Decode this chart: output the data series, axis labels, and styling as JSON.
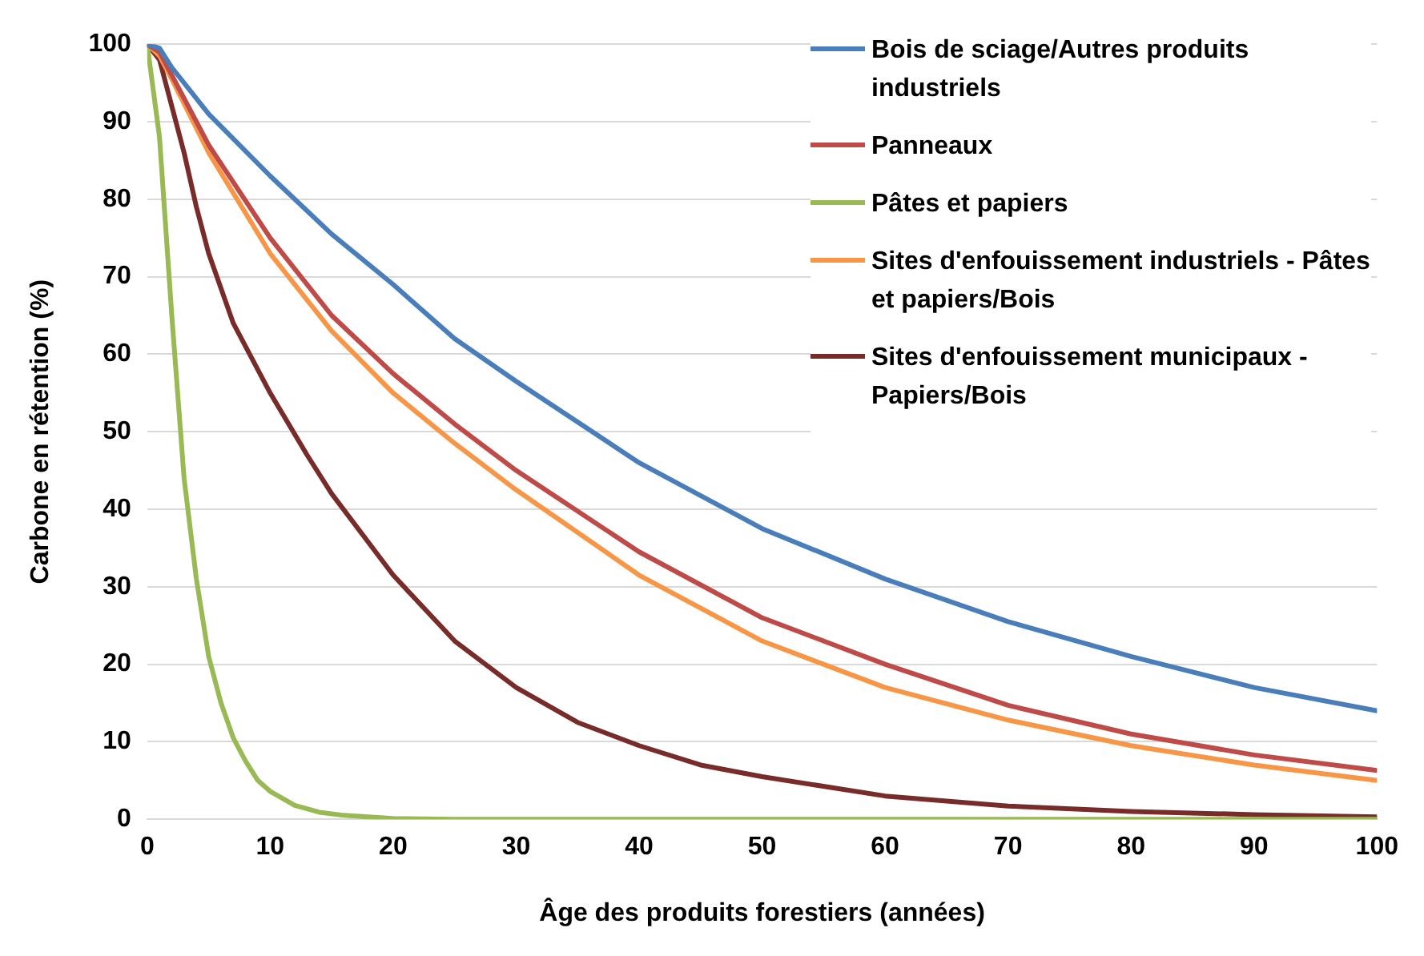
{
  "chart_data": {
    "type": "line",
    "xlabel": "Âge des produits forestiers (années)",
    "ylabel": "Carbone en rétention (%)",
    "xlim": [
      0,
      100
    ],
    "xticks": [
      0,
      10,
      20,
      30,
      40,
      50,
      60,
      70,
      80,
      90,
      100
    ],
    "ylim": [
      0,
      100
    ],
    "yticks": [
      0,
      10,
      20,
      30,
      40,
      50,
      60,
      70,
      80,
      90,
      100
    ],
    "grid": "y",
    "legend": "top right",
    "marker": "none",
    "line_style": "solid",
    "series": [
      {
        "name": "Bois de sciage/Autres produits industriels",
        "color": "#4a7ebb",
        "x": [
          0,
          1,
          2,
          5,
          10,
          15,
          20,
          25,
          30,
          40,
          50,
          60,
          70,
          80,
          90,
          100
        ],
        "values": [
          100,
          99.5,
          97,
          91,
          83,
          75.5,
          69,
          62,
          56.5,
          46,
          37.5,
          31,
          25.5,
          21,
          17,
          14
        ]
      },
      {
        "name": "Panneaux",
        "color": "#be4b48",
        "x": [
          0,
          1,
          2,
          5,
          10,
          15,
          20,
          25,
          30,
          40,
          50,
          60,
          70,
          80,
          90,
          100
        ],
        "values": [
          100,
          99,
          96,
          87,
          75,
          65,
          57.5,
          51,
          45,
          34.5,
          26,
          20,
          14.7,
          11,
          8.3,
          6.3
        ]
      },
      {
        "name": "Pâtes et papiers",
        "color": "#98b954",
        "x": [
          0,
          1,
          2,
          3,
          4,
          5,
          6,
          7,
          8,
          9,
          10,
          12,
          14,
          16,
          18,
          20,
          25,
          40,
          60,
          80,
          100
        ],
        "values": [
          100,
          88,
          65,
          44,
          31,
          21,
          15,
          10.5,
          7.5,
          5,
          3.6,
          1.8,
          0.9,
          0.5,
          0.3,
          0.1,
          0,
          0,
          0,
          0,
          0
        ]
      },
      {
        "name": "Sites d'enfouissement industriels - Pâtes et papiers/Bois",
        "color": "#f79646",
        "x": [
          0,
          1,
          2,
          5,
          10,
          15,
          20,
          25,
          30,
          40,
          50,
          60,
          70,
          80,
          90,
          100
        ],
        "values": [
          100,
          98.5,
          95.5,
          86,
          73,
          63,
          55,
          48.5,
          42.5,
          31.5,
          23,
          17,
          12.8,
          9.5,
          7,
          5
        ]
      },
      {
        "name": "Sites d'enfouissement municipaux - Papiers/Bois",
        "color": "#772c2a",
        "x": [
          0,
          1,
          2,
          3,
          4,
          5,
          7,
          10,
          13,
          15,
          20,
          25,
          30,
          35,
          40,
          45,
          50,
          60,
          70,
          80,
          90,
          100
        ],
        "values": [
          100,
          98,
          92,
          86,
          79,
          73,
          64,
          55,
          47,
          42,
          31.5,
          23,
          17,
          12.5,
          9.5,
          7,
          5.5,
          3,
          1.7,
          1,
          0.6,
          0.3
        ]
      }
    ]
  }
}
